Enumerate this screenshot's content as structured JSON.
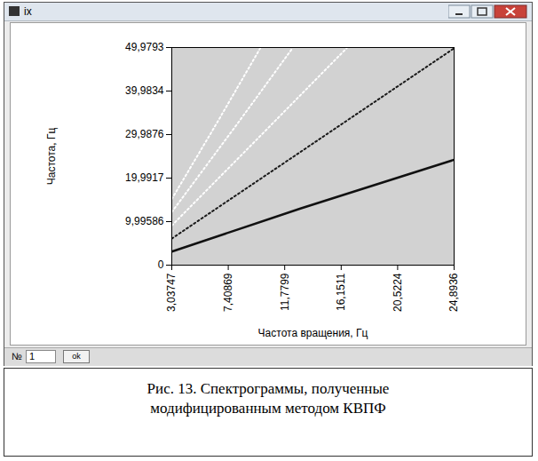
{
  "window": {
    "title": "ix",
    "number_label": "№",
    "number_value": 1,
    "button": "ok"
  },
  "caption": "Рис. 13. Спектрограммы, полученные модифицированным методом КВПФ",
  "chart_data": {
    "type": "line",
    "x_label": "Частота вращения, Гц",
    "y_label": "Частота, Гц",
    "xlim": [
      3.03747,
      24.8936
    ],
    "ylim": [
      0,
      49.9793
    ],
    "xticks": [
      {
        "value": 3.03747,
        "label": "3,03747"
      },
      {
        "value": 7.40869,
        "label": "7,40869"
      },
      {
        "value": 11.7799,
        "label": "11,7799"
      },
      {
        "value": 16.1511,
        "label": "16,1511"
      },
      {
        "value": 20.5224,
        "label": "20,5224"
      },
      {
        "value": 24.8936,
        "label": "24,8936"
      }
    ],
    "yticks": [
      0,
      {
        "value": 9.99586,
        "label": "9,99586"
      },
      {
        "value": 19.9917,
        "label": "19,9917"
      },
      {
        "value": 29.9876,
        "label": "29,9876"
      },
      {
        "value": 39.9834,
        "label": "39,9834"
      },
      {
        "value": 49.9793,
        "label": "49,9793"
      }
    ],
    "grid": false,
    "series": [
      {
        "color": "#111111",
        "line_style": "solid",
        "x": [
          3.04,
          13.0,
          24.89
        ],
        "values": [
          3.1,
          13.0,
          24.2
        ]
      },
      {
        "color": "#1a1a1a",
        "line_style": "dotted",
        "x": [
          3.04,
          13.0,
          24.89
        ],
        "values": [
          6.1,
          26.0,
          49.8
        ]
      },
      {
        "color": "#ffffff",
        "line_style": "dotted",
        "x": [
          3.04,
          10.0,
          16.6
        ],
        "values": [
          9.1,
          30.0,
          49.9
        ]
      },
      {
        "color": "#ffffff",
        "line_style": "dotted",
        "x": [
          3.04,
          8.0,
          12.4
        ],
        "values": [
          12.2,
          32.0,
          49.9
        ]
      },
      {
        "color": "#ffffff",
        "line_style": "dotted",
        "x": [
          3.04,
          6.5,
          9.9
        ],
        "values": [
          15.2,
          32.5,
          49.9
        ]
      }
    ]
  }
}
